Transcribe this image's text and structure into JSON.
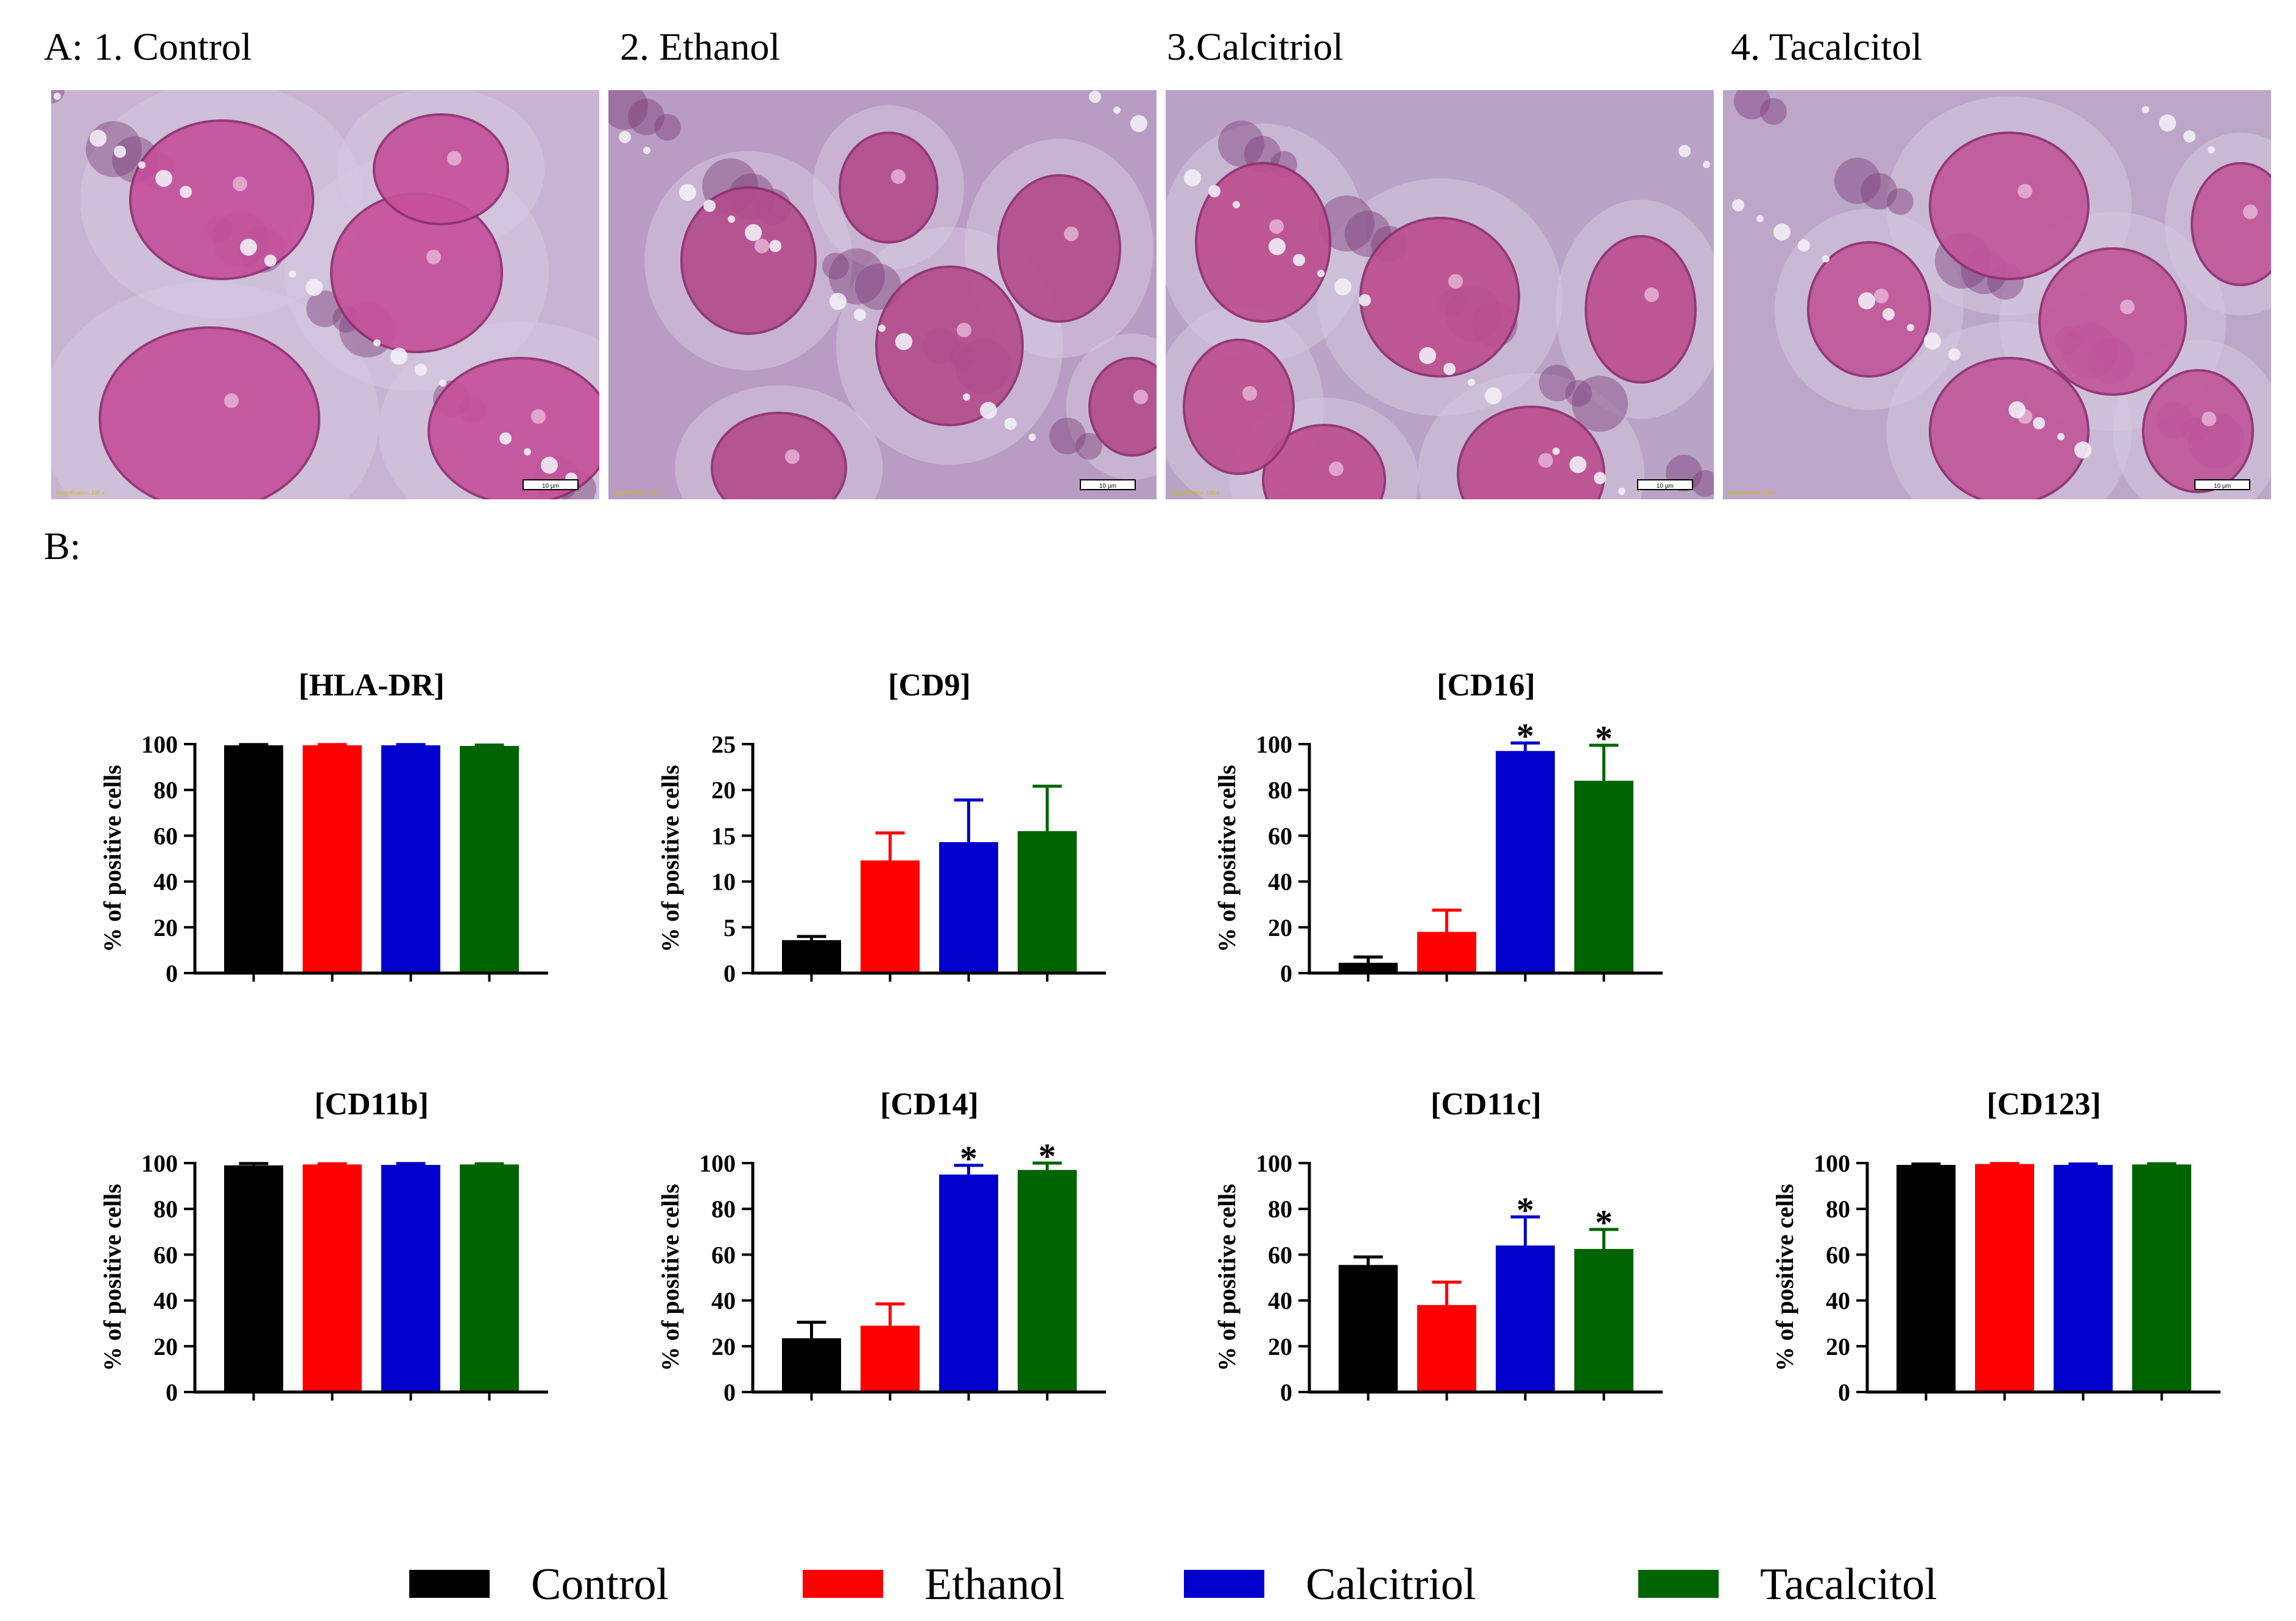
{
  "panel_a_label": "A:",
  "panel_b_label": "B:",
  "micrographs": [
    {
      "title": "1. Control",
      "scale_label": "10 µm",
      "caption": "Magnification: 100 x",
      "tone": "#c7b3d2",
      "nucleus": "#c5519b"
    },
    {
      "title": "2. Ethanol",
      "scale_label": "10 µm",
      "caption": "Magnification: 100 x",
      "tone": "#b99cc3",
      "nucleus": "#b34d8d"
    },
    {
      "title": "3.Calcitriol",
      "scale_label": "10 µm",
      "caption": "Magnification: 100 x",
      "tone": "#b9a3c6",
      "nucleus": "#bd4f8f"
    },
    {
      "title": "4. Tacalcitol",
      "scale_label": "10 µm",
      "caption": "Magnification: 100 x",
      "tone": "#bda7c9",
      "nucleus": "#c1579a"
    }
  ],
  "colors": {
    "Control": "#000000",
    "Ethanol": "#ff0000",
    "Calcitriol": "#0000cc",
    "Tacalcitol": "#006400"
  },
  "legend": [
    "Control",
    "Ethanol",
    "Calcitriol",
    "Tacalcitol"
  ],
  "chart_data": [
    {
      "type": "bar",
      "title": "[HLA-DR]",
      "ylabel": "% of positive cells",
      "ylim": [
        0,
        100
      ],
      "yticks": [
        0,
        20,
        40,
        60,
        80,
        100
      ],
      "categories": [
        "Control",
        "Ethanol",
        "Calcitriol",
        "Tacalcitol"
      ],
      "values": [
        99.5,
        99.5,
        99.5,
        99.2
      ],
      "errors": [
        0.3,
        0.3,
        0.3,
        0.4
      ],
      "stars": [
        "",
        "",
        "",
        ""
      ]
    },
    {
      "type": "bar",
      "title": "[CD9]",
      "ylabel": "% of positive cells",
      "ylim": [
        0,
        25
      ],
      "yticks": [
        0,
        5,
        10,
        15,
        20,
        25
      ],
      "categories": [
        "Control",
        "Ethanol",
        "Calcitriol",
        "Tacalcitol"
      ],
      "values": [
        3.6,
        12.3,
        14.3,
        15.5
      ],
      "errors": [
        0.4,
        3.0,
        4.6,
        4.9
      ],
      "stars": [
        "",
        "",
        "",
        ""
      ]
    },
    {
      "type": "bar",
      "title": "[CD16]",
      "ylabel": "% of positive cells",
      "ylim": [
        0,
        100
      ],
      "yticks": [
        0,
        20,
        40,
        60,
        80,
        100
      ],
      "categories": [
        "Control",
        "Ethanol",
        "Calcitriol",
        "Tacalcitol"
      ],
      "values": [
        4.5,
        18,
        97,
        84
      ],
      "errors": [
        2.5,
        9.5,
        3.5,
        15.5
      ],
      "stars": [
        "",
        "",
        "*",
        "*"
      ]
    },
    {
      "type": "bar",
      "title": "[CD11b]",
      "ylabel": "% of positive cells",
      "ylim": [
        0,
        100
      ],
      "yticks": [
        0,
        20,
        40,
        60,
        80,
        100
      ],
      "categories": [
        "Control",
        "Ethanol",
        "Calcitriol",
        "Tacalcitol"
      ],
      "values": [
        99,
        99.4,
        99.2,
        99.4
      ],
      "errors": [
        0.8,
        0.3,
        0.6,
        0.3
      ],
      "stars": [
        "",
        "",
        "",
        ""
      ]
    },
    {
      "type": "bar",
      "title": "[CD14]",
      "ylabel": "% of positive cells",
      "ylim": [
        0,
        100
      ],
      "yticks": [
        0,
        20,
        40,
        60,
        80,
        100
      ],
      "categories": [
        "Control",
        "Ethanol",
        "Calcitriol",
        "Tacalcitol"
      ],
      "values": [
        23.5,
        29,
        95,
        97
      ],
      "errors": [
        7,
        9.5,
        4,
        3
      ],
      "stars": [
        "",
        "",
        "*",
        "*"
      ]
    },
    {
      "type": "bar",
      "title": "[CD11c]",
      "ylabel": "% of positive cells",
      "ylim": [
        0,
        100
      ],
      "yticks": [
        0,
        20,
        40,
        60,
        80,
        100
      ],
      "categories": [
        "Control",
        "Ethanol",
        "Calcitriol",
        "Tacalcitol"
      ],
      "values": [
        55.5,
        38,
        64,
        62.5
      ],
      "errors": [
        3.5,
        10,
        12.5,
        8.5
      ],
      "stars": [
        "",
        "",
        "*",
        "*"
      ]
    },
    {
      "type": "bar",
      "title": "[CD123]",
      "ylabel": "% of positive cells",
      "ylim": [
        0,
        100
      ],
      "yticks": [
        0,
        20,
        40,
        60,
        80,
        100
      ],
      "categories": [
        "Control",
        "Ethanol",
        "Calcitriol",
        "Tacalcitol"
      ],
      "values": [
        99.2,
        99.6,
        99.2,
        99.4
      ],
      "errors": [
        0.4,
        0.2,
        0.4,
        0.3
      ],
      "stars": [
        "",
        "",
        "",
        ""
      ]
    }
  ]
}
